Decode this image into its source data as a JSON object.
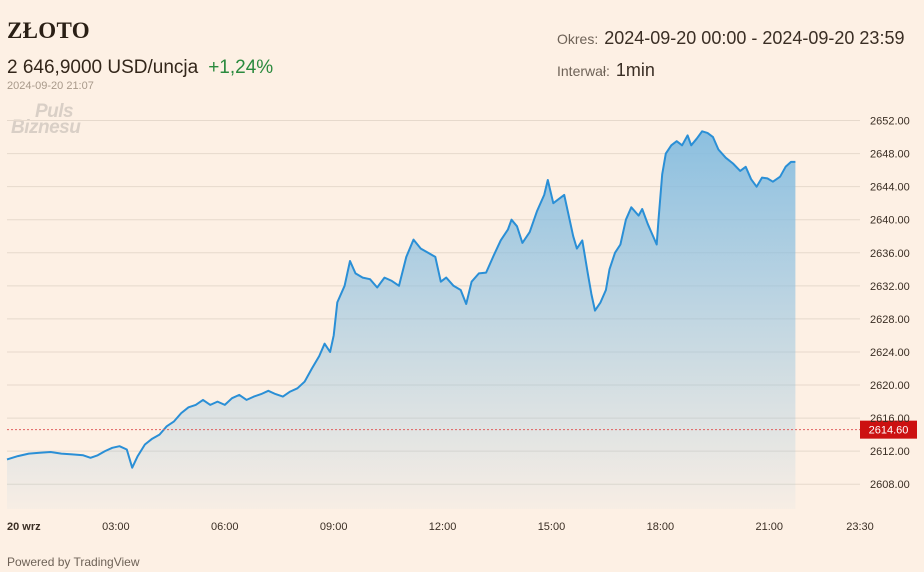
{
  "header": {
    "title": "ZŁOTO",
    "price": "2 646,9000 USD/uncja",
    "change": "+1,24%",
    "timestamp": "2024-09-20 21:07",
    "period_label": "Okres:",
    "period_value": "2024-09-20 00:00 - 2024-09-20 23:59",
    "interval_label": "Interwał:",
    "interval_value": "1min"
  },
  "logo": {
    "line1": "Puls",
    "line2": "Biznesu"
  },
  "footer": {
    "powered_by": "Powered by TradingView"
  },
  "colors": {
    "background": "#fdf0e4",
    "line": "#2a8fd6",
    "area_top": "#86bde0",
    "gridline": "#e6d9cc",
    "change_positive": "#2b8a3e",
    "reference_line": "#e06060",
    "reference_badge": "#cc1111"
  },
  "chart_data": {
    "type": "area",
    "title": "",
    "xlabel": "",
    "ylabel": "",
    "x_unit": "hours since 2024-09-20 00:00",
    "xlim": [
      0,
      23.5
    ],
    "ylim": [
      2605,
      2654
    ],
    "x_ticks": [
      {
        "value": 0,
        "label": "20 wrz"
      },
      {
        "value": 3,
        "label": "03:00"
      },
      {
        "value": 6,
        "label": "06:00"
      },
      {
        "value": 9,
        "label": "09:00"
      },
      {
        "value": 12,
        "label": "12:00"
      },
      {
        "value": 15,
        "label": "15:00"
      },
      {
        "value": 18,
        "label": "18:00"
      },
      {
        "value": 21,
        "label": "21:00"
      },
      {
        "value": 23.5,
        "label": "23:30"
      }
    ],
    "y_ticks": [
      2608,
      2612,
      2616,
      2620,
      2624,
      2628,
      2632,
      2636,
      2640,
      2644,
      2648,
      2652
    ],
    "y_tick_labels": [
      "2608.00",
      "2612.00",
      "2616.00",
      "2620.00",
      "2624.00",
      "2628.00",
      "2632.00",
      "2636.00",
      "2640.00",
      "2644.00",
      "2648.00",
      "2652.00"
    ],
    "grid": true,
    "reference_line": {
      "value": 2614.6,
      "label": "2614.60"
    },
    "series": [
      {
        "values": [
          [
            0.0,
            2611.0
          ],
          [
            0.3,
            2611.4
          ],
          [
            0.6,
            2611.7
          ],
          [
            0.9,
            2611.8
          ],
          [
            1.2,
            2611.9
          ],
          [
            1.5,
            2611.7
          ],
          [
            1.8,
            2611.6
          ],
          [
            2.1,
            2611.5
          ],
          [
            2.3,
            2611.2
          ],
          [
            2.5,
            2611.5
          ],
          [
            2.7,
            2612.0
          ],
          [
            2.9,
            2612.4
          ],
          [
            3.1,
            2612.6
          ],
          [
            3.3,
            2612.2
          ],
          [
            3.45,
            2610.0
          ],
          [
            3.6,
            2611.4
          ],
          [
            3.8,
            2612.8
          ],
          [
            4.0,
            2613.5
          ],
          [
            4.2,
            2614.0
          ],
          [
            4.4,
            2615.0
          ],
          [
            4.6,
            2615.6
          ],
          [
            4.8,
            2616.6
          ],
          [
            5.0,
            2617.3
          ],
          [
            5.2,
            2617.6
          ],
          [
            5.4,
            2618.2
          ],
          [
            5.6,
            2617.6
          ],
          [
            5.8,
            2618.0
          ],
          [
            6.0,
            2617.6
          ],
          [
            6.2,
            2618.4
          ],
          [
            6.4,
            2618.8
          ],
          [
            6.6,
            2618.2
          ],
          [
            6.8,
            2618.6
          ],
          [
            7.0,
            2618.9
          ],
          [
            7.2,
            2619.3
          ],
          [
            7.4,
            2618.9
          ],
          [
            7.6,
            2618.6
          ],
          [
            7.8,
            2619.2
          ],
          [
            8.0,
            2619.6
          ],
          [
            8.2,
            2620.4
          ],
          [
            8.4,
            2622.0
          ],
          [
            8.6,
            2623.5
          ],
          [
            8.75,
            2625.0
          ],
          [
            8.9,
            2624.0
          ],
          [
            9.0,
            2626.0
          ],
          [
            9.1,
            2630.0
          ],
          [
            9.3,
            2632.0
          ],
          [
            9.45,
            2635.0
          ],
          [
            9.6,
            2633.5
          ],
          [
            9.8,
            2633.0
          ],
          [
            10.0,
            2632.8
          ],
          [
            10.2,
            2631.8
          ],
          [
            10.4,
            2633.0
          ],
          [
            10.6,
            2632.6
          ],
          [
            10.8,
            2632.0
          ],
          [
            11.0,
            2635.5
          ],
          [
            11.2,
            2637.6
          ],
          [
            11.4,
            2636.5
          ],
          [
            11.6,
            2636.0
          ],
          [
            11.8,
            2635.5
          ],
          [
            11.95,
            2632.5
          ],
          [
            12.1,
            2633.0
          ],
          [
            12.3,
            2632.0
          ],
          [
            12.5,
            2631.5
          ],
          [
            12.65,
            2629.8
          ],
          [
            12.8,
            2632.5
          ],
          [
            13.0,
            2633.5
          ],
          [
            13.2,
            2633.6
          ],
          [
            13.4,
            2635.6
          ],
          [
            13.6,
            2637.5
          ],
          [
            13.8,
            2638.8
          ],
          [
            13.9,
            2640.0
          ],
          [
            14.05,
            2639.2
          ],
          [
            14.2,
            2637.2
          ],
          [
            14.4,
            2638.5
          ],
          [
            14.6,
            2641.0
          ],
          [
            14.8,
            2643.0
          ],
          [
            14.9,
            2644.8
          ],
          [
            15.05,
            2642.0
          ],
          [
            15.2,
            2642.5
          ],
          [
            15.35,
            2643.0
          ],
          [
            15.45,
            2641.0
          ],
          [
            15.6,
            2638.0
          ],
          [
            15.7,
            2636.5
          ],
          [
            15.85,
            2637.5
          ],
          [
            16.0,
            2633.5
          ],
          [
            16.1,
            2631.0
          ],
          [
            16.2,
            2629.0
          ],
          [
            16.35,
            2630.0
          ],
          [
            16.5,
            2631.5
          ],
          [
            16.6,
            2634.0
          ],
          [
            16.75,
            2636.0
          ],
          [
            16.9,
            2637.0
          ],
          [
            17.05,
            2640.0
          ],
          [
            17.2,
            2641.5
          ],
          [
            17.4,
            2640.5
          ],
          [
            17.5,
            2641.3
          ],
          [
            17.65,
            2639.5
          ],
          [
            17.75,
            2638.5
          ],
          [
            17.9,
            2637.0
          ],
          [
            17.95,
            2640.0
          ],
          [
            18.05,
            2645.5
          ],
          [
            18.15,
            2648.0
          ],
          [
            18.3,
            2649.0
          ],
          [
            18.45,
            2649.5
          ],
          [
            18.6,
            2649.0
          ],
          [
            18.75,
            2650.2
          ],
          [
            18.85,
            2649.0
          ],
          [
            19.0,
            2649.8
          ],
          [
            19.15,
            2650.7
          ],
          [
            19.3,
            2650.5
          ],
          [
            19.45,
            2650.0
          ],
          [
            19.6,
            2648.5
          ],
          [
            19.8,
            2647.5
          ],
          [
            20.0,
            2646.8
          ],
          [
            20.2,
            2645.9
          ],
          [
            20.35,
            2646.4
          ],
          [
            20.5,
            2644.9
          ],
          [
            20.65,
            2644.0
          ],
          [
            20.8,
            2645.1
          ],
          [
            20.95,
            2645.0
          ],
          [
            21.1,
            2644.6
          ],
          [
            21.3,
            2645.2
          ],
          [
            21.45,
            2646.4
          ],
          [
            21.6,
            2647.0
          ],
          [
            21.72,
            2647.0
          ]
        ]
      }
    ]
  }
}
